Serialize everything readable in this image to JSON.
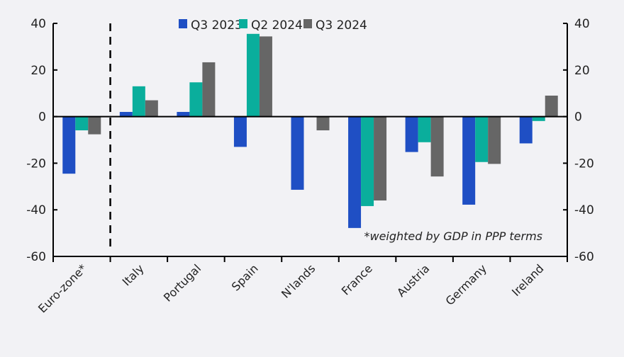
{
  "chart_data": {
    "type": "bar",
    "categories": [
      "Euro-zone*",
      "Italy",
      "Portugal",
      "Spain",
      "N'lands",
      "France",
      "Austria",
      "Germany",
      "Ireland"
    ],
    "series": [
      {
        "name": "Q3 2023",
        "color": "#1f4fc4",
        "values": [
          -24.5,
          2,
          2,
          -13,
          -31.4,
          -47.8,
          -15.2,
          -37.8,
          -11.5
        ]
      },
      {
        "name": "Q2 2024",
        "color": "#0aae9c",
        "values": [
          -5.9,
          13,
          14.7,
          35.5,
          0,
          -38.4,
          -11,
          -19.5,
          -1.9
        ]
      },
      {
        "name": "Q3 2024",
        "color": "#666666",
        "values": [
          -7.6,
          7,
          23.3,
          34.4,
          -5.9,
          -36,
          -25.7,
          -20.3,
          9
        ]
      }
    ],
    "ylim": [
      -60,
      40
    ],
    "yticks": [
      40,
      20,
      0,
      -20,
      -40,
      -60
    ],
    "ytick_labels": [
      "40",
      "20",
      "0",
      "-20",
      "-40",
      "-60"
    ],
    "secondary_y_axis": true,
    "legend": "top",
    "annotation": "*weighted by GDP in PPP terms",
    "separator_after_category": "Euro-zone*",
    "grid": false
  }
}
